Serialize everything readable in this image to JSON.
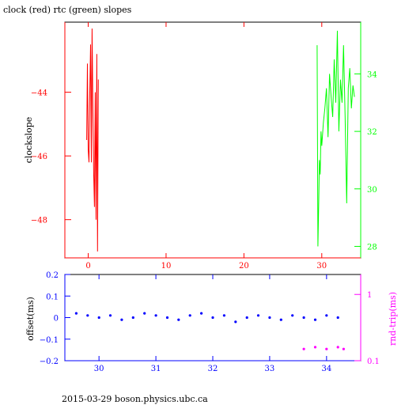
{
  "title": "clock (red) rtc (green) slopes",
  "footer": "2015-03-29  boson.physics.ubc.ca",
  "colors": {
    "clock": "#ff0000",
    "rtc": "#00ff00",
    "offset": "#0000ff",
    "roundtrip": "#ff00ff",
    "frame": "#000000"
  },
  "chart_data": [
    {
      "type": "line",
      "ylabel": "clockslope",
      "xlim": [
        -3,
        35
      ],
      "ylim": [
        -49.2,
        -41.8
      ],
      "right_ylim": [
        27.6,
        35.8
      ],
      "x_ticks": [
        0,
        10,
        20,
        30
      ],
      "y_ticks": [
        -44,
        -46,
        -48
      ],
      "right_y_ticks": [
        34,
        32,
        30,
        28
      ],
      "series": [
        {
          "color": "#ff0000",
          "axis": "left",
          "x": [
            -0.2,
            -0.1,
            0.0,
            0.1,
            0.2,
            0.3,
            0.4,
            0.5,
            0.6,
            0.7,
            0.8,
            0.9,
            1.0,
            1.1,
            1.2,
            1.3
          ],
          "y": [
            -45.5,
            -43.1,
            -45.8,
            -46.2,
            -44.0,
            -42.5,
            -46.2,
            -42.0,
            -44.5,
            -46.5,
            -47.6,
            -44.0,
            -48.0,
            -42.8,
            -49.0,
            -43.6
          ]
        },
        {
          "color": "#00ff00",
          "axis": "right",
          "x": [
            29.4,
            29.5,
            29.6,
            29.7,
            29.8,
            29.9,
            30.0,
            30.2,
            30.4,
            30.6,
            30.8,
            31.0,
            31.2,
            31.4,
            31.6,
            31.8,
            32.0,
            32.2,
            32.4,
            32.6,
            32.8,
            33.0,
            33.2,
            33.4,
            33.6,
            33.8,
            34.0,
            34.2
          ],
          "y": [
            35.0,
            28.0,
            29.5,
            31.0,
            30.5,
            32.0,
            31.5,
            32.3,
            32.8,
            33.5,
            31.8,
            34.0,
            33.2,
            32.5,
            34.5,
            33.0,
            35.5,
            32.0,
            33.8,
            33.0,
            35.0,
            32.5,
            29.5,
            33.5,
            34.2,
            32.8,
            33.6,
            33.2
          ]
        }
      ]
    },
    {
      "type": "scatter",
      "ylabel": "offset(ms)",
      "right_ylabel": "rnd-trip(ms)",
      "xlim": [
        29.4,
        34.6
      ],
      "ylim": [
        -0.2,
        0.2
      ],
      "right_yscale": "log",
      "right_ylim": [
        0.1,
        2
      ],
      "x_ticks": [
        30,
        31,
        32,
        33,
        34
      ],
      "y_ticks": [
        0.2,
        0.1,
        0,
        -0.1,
        -0.2
      ],
      "y_tick_labels": [
        "0.2",
        "0.1",
        "0",
        "-0.1",
        "-0.2"
      ],
      "right_y_ticks": [
        1,
        0.1
      ],
      "right_y_tick_labels": [
        "1",
        "0.1"
      ],
      "series": [
        {
          "color": "#0000ff",
          "axis": "left",
          "x": [
            29.6,
            29.8,
            30.0,
            30.2,
            30.4,
            30.6,
            30.8,
            31.0,
            31.2,
            31.4,
            31.6,
            31.8,
            32.0,
            32.2,
            32.4,
            32.6,
            32.8,
            33.0,
            33.2,
            33.4,
            33.6,
            33.8,
            34.0,
            34.2
          ],
          "y": [
            0.02,
            0.01,
            0.0,
            0.01,
            -0.01,
            0.0,
            0.02,
            0.01,
            0.0,
            -0.01,
            0.01,
            0.02,
            0.0,
            0.01,
            -0.02,
            0.0,
            0.01,
            0.0,
            -0.01,
            0.01,
            0.0,
            -0.01,
            0.01,
            0.0
          ]
        },
        {
          "color": "#ff00ff",
          "axis": "right",
          "x": [
            33.6,
            33.8,
            34.0,
            34.2,
            34.3
          ],
          "y": [
            0.15,
            0.16,
            0.15,
            0.16,
            0.15
          ]
        }
      ]
    }
  ]
}
